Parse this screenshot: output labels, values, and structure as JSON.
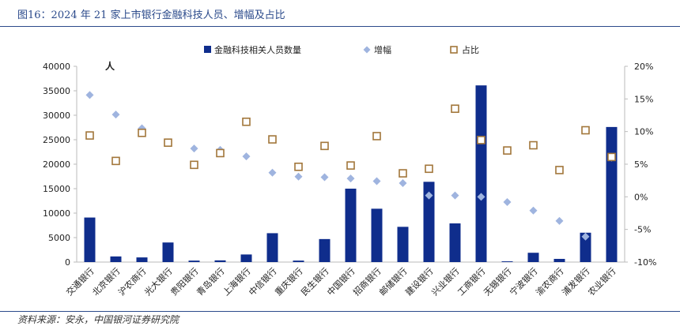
{
  "figure_title": "图16：2024 年 21 家上市银行金融科技人员、增幅及占比",
  "source_text": "资料来源：安永，中国银河证券研究院",
  "chart_data": {
    "type": "bar",
    "unit_label": "人",
    "categories": [
      "交通银行",
      "北京银行",
      "沪农商行",
      "光大银行",
      "贵阳银行",
      "青岛银行",
      "上海银行",
      "中信银行",
      "重庆银行",
      "民生银行",
      "中国银行",
      "招商银行",
      "邮储银行",
      "建设银行",
      "兴业银行",
      "工商银行",
      "无锡银行",
      "宁波银行",
      "渝农商行",
      "浦发银行",
      "农业银行"
    ],
    "series": [
      {
        "name": "金融科技相关人员数量",
        "axis": "left",
        "kind": "bar",
        "values": [
          9100,
          1150,
          950,
          4000,
          300,
          350,
          1550,
          5900,
          300,
          4700,
          15000,
          10900,
          7200,
          16400,
          7900,
          36100,
          150,
          1900,
          650,
          6000,
          27600
        ]
      },
      {
        "name": "增幅",
        "axis": "right",
        "kind": "diamond",
        "values": [
          15.6,
          12.6,
          10.5,
          null,
          7.4,
          7.2,
          6.2,
          3.7,
          3.1,
          3.0,
          2.8,
          2.4,
          2.1,
          0.2,
          0.2,
          0.0,
          -0.8,
          -2.1,
          -3.7,
          -6.1,
          6.0
        ]
      },
      {
        "name": "占比",
        "axis": "right",
        "kind": "square",
        "values": [
          9.4,
          5.5,
          9.8,
          8.3,
          4.9,
          6.7,
          11.5,
          8.8,
          4.6,
          7.8,
          4.8,
          9.3,
          3.6,
          4.3,
          13.5,
          8.7,
          7.1,
          7.9,
          4.1,
          10.2,
          6.1
        ]
      }
    ],
    "ylim_left": [
      0,
      40000
    ],
    "yticks_left": [
      "0",
      "5000",
      "10000",
      "15000",
      "20000",
      "25000",
      "30000",
      "35000",
      "40000"
    ],
    "ylim_right": [
      -10,
      20
    ],
    "yticks_right": [
      "-10%",
      "-5%",
      "0%",
      "5%",
      "10%",
      "15%",
      "20%"
    ],
    "colors": {
      "bar": "#0f2d8c",
      "diamond": "#9fb4df",
      "square_stroke": "#a2763a",
      "axis": "#bbbbbb",
      "title": "#2b4a8b"
    }
  }
}
